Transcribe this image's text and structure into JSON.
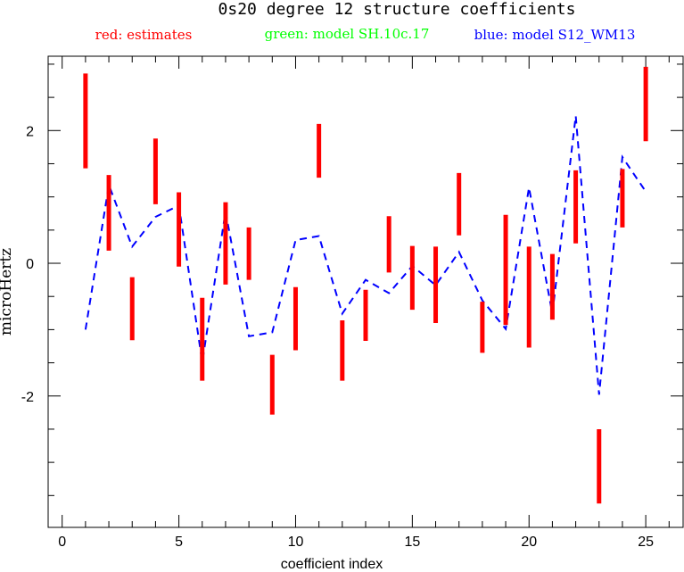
{
  "chart_data": {
    "type": "line",
    "title": "0s20 degree 12 structure coefficients",
    "xlabel": "coefficient index",
    "ylabel": "microHertz",
    "xlim": [
      -0.6,
      26.6
    ],
    "ylim": [
      -3.98,
      3.12
    ],
    "xticks": [
      0,
      5,
      10,
      15,
      20,
      25
    ],
    "xtick_labels": [
      "0",
      "5",
      "10",
      "15",
      "20",
      "25"
    ],
    "yticks": [
      -2,
      0,
      2
    ],
    "ytick_labels": [
      "-2",
      "0",
      "2"
    ],
    "legend": [
      {
        "label": "red: estimates",
        "color": "#ff0000"
      },
      {
        "label": "green: model SH.10c.17",
        "color": "#00ff00"
      },
      {
        "label": "blue: model S12_WM13",
        "color": "#0000ff"
      }
    ],
    "estimates": {
      "name": "red: estimates",
      "color": "#ff0000",
      "style": "error bars",
      "x": [
        1,
        2,
        3,
        4,
        5,
        6,
        7,
        8,
        9,
        10,
        11,
        12,
        13,
        14,
        15,
        16,
        17,
        18,
        19,
        20,
        21,
        22,
        23,
        24,
        25
      ],
      "low": [
        1.43,
        0.19,
        -1.16,
        0.89,
        -0.05,
        -1.77,
        -0.32,
        -0.25,
        -2.28,
        -1.31,
        1.29,
        -1.77,
        -1.17,
        -0.14,
        -0.7,
        -0.9,
        0.42,
        -1.35,
        -0.93,
        -1.27,
        -0.85,
        0.3,
        -3.62,
        0.54,
        1.84
      ],
      "high": [
        2.86,
        1.33,
        -0.21,
        1.88,
        1.07,
        -0.52,
        0.92,
        0.54,
        -1.38,
        -0.36,
        2.1,
        -0.86,
        -0.4,
        0.71,
        0.26,
        0.25,
        1.36,
        -0.58,
        0.73,
        0.25,
        0.14,
        1.4,
        -2.5,
        1.42,
        2.96
      ]
    },
    "series": [
      {
        "name": "blue: model S12_WM13",
        "color": "#0000ff",
        "style": "dashed",
        "x": [
          1,
          2,
          3,
          4,
          5,
          6,
          7,
          8,
          9,
          10,
          11,
          12,
          13,
          14,
          15,
          16,
          17,
          18,
          19,
          20,
          21,
          22,
          23,
          24,
          25
        ],
        "y": [
          -1.0,
          1.18,
          0.25,
          0.7,
          0.87,
          -1.49,
          0.78,
          -1.1,
          -1.04,
          0.35,
          0.41,
          -0.76,
          -0.25,
          -0.45,
          -0.04,
          -0.33,
          0.17,
          -0.56,
          -0.99,
          1.14,
          -0.76,
          2.22,
          -1.98,
          1.6,
          1.08
        ]
      }
    ]
  }
}
